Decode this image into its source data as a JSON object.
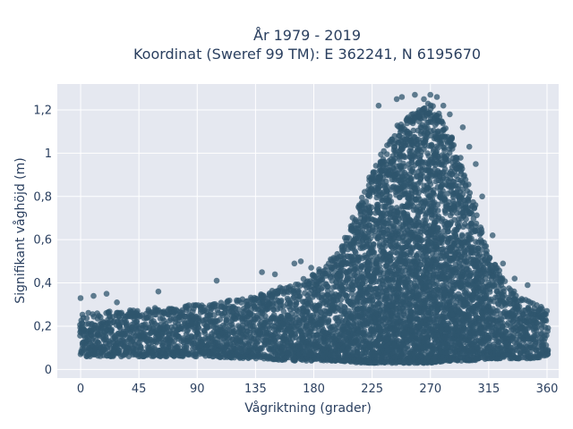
{
  "chart_data": {
    "type": "scatter",
    "title_lines": [
      "År 1979 - 2019",
      "Koordinat (Sweref 99 TM): E 362241, N 6195670"
    ],
    "xlabel": "Vågriktning (grader)",
    "ylabel": "Signifikant våghöjd (m)",
    "xlim": [
      -18,
      369
    ],
    "ylim": [
      -0.04,
      1.32
    ],
    "xticks": [
      0,
      45,
      90,
      135,
      180,
      225,
      270,
      315,
      360
    ],
    "xtick_labels": [
      "0",
      "45",
      "90",
      "135",
      "180",
      "225",
      "270",
      "315",
      "360"
    ],
    "yticks": [
      0,
      0.2,
      0.4,
      0.6,
      0.8,
      1.0,
      1.2
    ],
    "ytick_labels": [
      "0",
      "0,2",
      "0,4",
      "0,6",
      "0,8",
      "1",
      "1,2"
    ],
    "grid": true,
    "background_color": "#e5e8f0",
    "marker_color": "#2f556e",
    "marker_opacity": 0.75,
    "envelope": {
      "x": [
        0,
        45,
        90,
        135,
        165,
        180,
        200,
        215,
        230,
        245,
        260,
        270,
        285,
        300,
        315,
        330,
        345,
        360
      ],
      "y_min": [
        0.06,
        0.06,
        0.06,
        0.05,
        0.04,
        0.04,
        0.04,
        0.03,
        0.03,
        0.03,
        0.03,
        0.03,
        0.04,
        0.04,
        0.05,
        0.05,
        0.05,
        0.06
      ],
      "y_max": [
        0.26,
        0.28,
        0.3,
        0.34,
        0.4,
        0.44,
        0.55,
        0.78,
        0.98,
        1.14,
        1.2,
        1.24,
        1.1,
        0.86,
        0.54,
        0.38,
        0.32,
        0.28
      ]
    },
    "outliers": [
      {
        "x": 0,
        "y": 0.33
      },
      {
        "x": 10,
        "y": 0.34
      },
      {
        "x": 20,
        "y": 0.35
      },
      {
        "x": 28,
        "y": 0.31
      },
      {
        "x": 60,
        "y": 0.36
      },
      {
        "x": 105,
        "y": 0.41
      },
      {
        "x": 140,
        "y": 0.45
      },
      {
        "x": 150,
        "y": 0.44
      },
      {
        "x": 165,
        "y": 0.49
      },
      {
        "x": 170,
        "y": 0.5
      },
      {
        "x": 178,
        "y": 0.47
      },
      {
        "x": 230,
        "y": 1.22
      },
      {
        "x": 244,
        "y": 1.25
      },
      {
        "x": 248,
        "y": 1.26
      },
      {
        "x": 258,
        "y": 1.27
      },
      {
        "x": 265,
        "y": 1.25
      },
      {
        "x": 270,
        "y": 1.27
      },
      {
        "x": 275,
        "y": 1.26
      },
      {
        "x": 280,
        "y": 1.22
      },
      {
        "x": 285,
        "y": 1.18
      },
      {
        "x": 295,
        "y": 1.12
      },
      {
        "x": 300,
        "y": 1.03
      },
      {
        "x": 305,
        "y": 0.95
      },
      {
        "x": 310,
        "y": 0.8
      },
      {
        "x": 318,
        "y": 0.62
      },
      {
        "x": 326,
        "y": 0.49
      },
      {
        "x": 335,
        "y": 0.42
      },
      {
        "x": 345,
        "y": 0.39
      }
    ]
  }
}
